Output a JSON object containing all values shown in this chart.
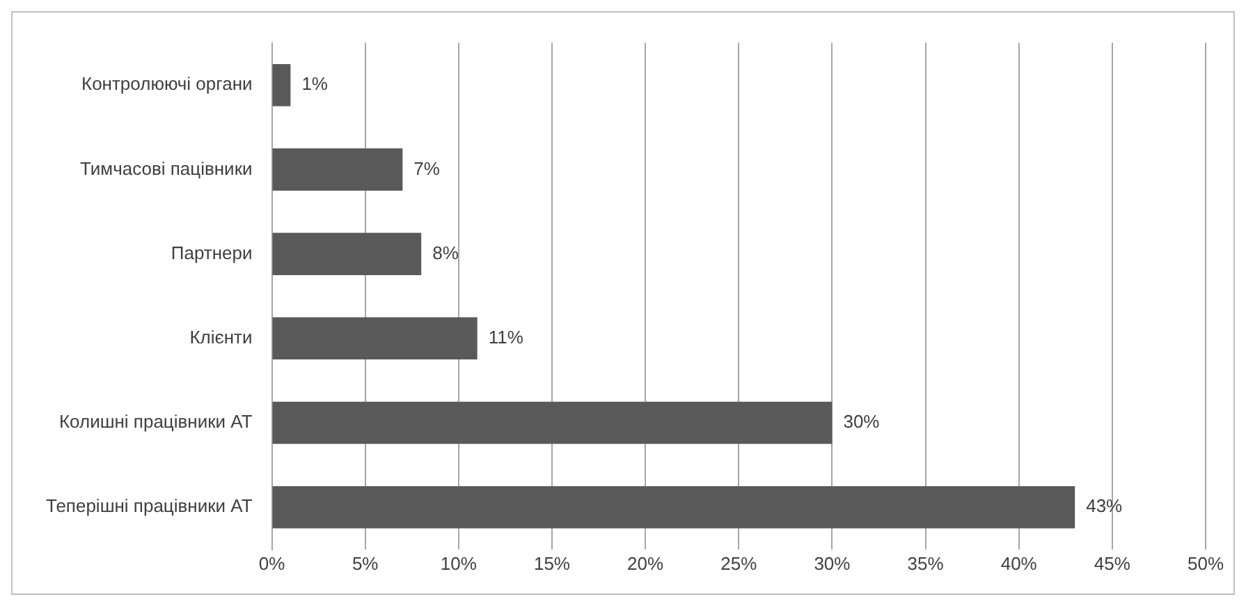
{
  "chart_data": {
    "type": "bar",
    "orientation": "horizontal",
    "categories": [
      "Контролюючі органи",
      "Тимчасові пацівники",
      "Партнери",
      "Клієнти",
      "Колишні працівники АТ",
      "Теперішні працівники АТ"
    ],
    "values": [
      1,
      7,
      8,
      11,
      30,
      43
    ],
    "value_labels": [
      "1%",
      "7%",
      "8%",
      "11%",
      "30%",
      "43%"
    ],
    "color": "#595959",
    "xlim": [
      0,
      50
    ],
    "xticks": [
      {
        "value": 0,
        "label": "0%"
      },
      {
        "value": 5,
        "label": "5%"
      },
      {
        "value": 10,
        "label": "10%"
      },
      {
        "value": 15,
        "label": "15%"
      },
      {
        "value": 20,
        "label": "20%"
      },
      {
        "value": 25,
        "label": "25%"
      },
      {
        "value": 30,
        "label": "30%"
      },
      {
        "value": 35,
        "label": "35%"
      },
      {
        "value": 40,
        "label": "40%"
      },
      {
        "value": 45,
        "label": "45%"
      },
      {
        "value": 50,
        "label": "50%"
      }
    ],
    "grid": "x",
    "legend": false
  }
}
